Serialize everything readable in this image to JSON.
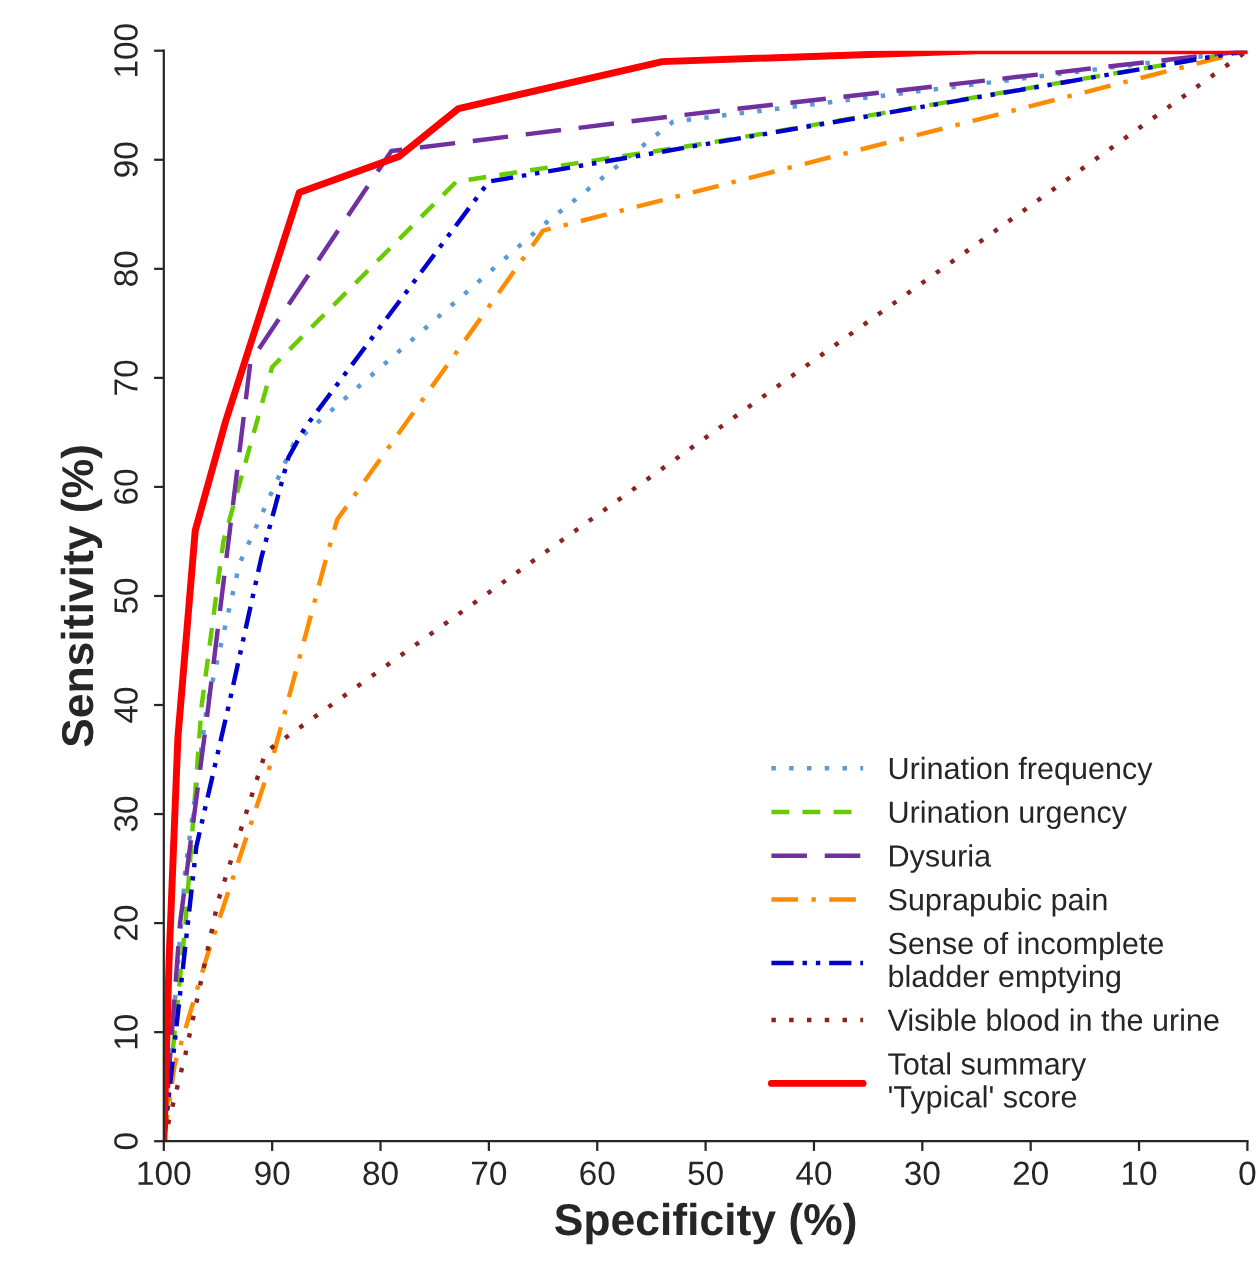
{
  "chart_data": {
    "type": "line",
    "xlabel": "Specificity (%)",
    "ylabel": "Sensitivity (%)",
    "xlim": [
      100,
      0
    ],
    "ylim": [
      0,
      100
    ],
    "xticks": [
      100,
      90,
      80,
      70,
      60,
      50,
      40,
      30,
      20,
      10,
      0
    ],
    "yticks": [
      0,
      10,
      20,
      30,
      40,
      50,
      60,
      70,
      80,
      90,
      100
    ],
    "grid": false,
    "legend": "bottom right",
    "marker": "none",
    "series": [
      {
        "name": "Urination frequency",
        "color": "#5b9bd5",
        "line_style": "dotted",
        "x": [
          100,
          98,
          96,
          93,
          88,
          65,
          53,
          0
        ],
        "values": [
          0,
          25,
          40,
          53,
          64,
          84,
          93.5,
          100
        ]
      },
      {
        "name": "Urination urgency",
        "color": "#66cc00",
        "line_style": "dashed",
        "x": [
          100,
          98,
          96.5,
          94.5,
          90,
          73,
          50,
          0
        ],
        "values": [
          0,
          20,
          40,
          55,
          71,
          88,
          91.5,
          100
        ]
      },
      {
        "name": "Dysuria",
        "color": "#7030a0",
        "line_style": "longdash",
        "x": [
          100,
          98.5,
          96,
          92,
          79,
          53,
          0
        ],
        "values": [
          0,
          20,
          39,
          71.5,
          90.8,
          94,
          100
        ]
      },
      {
        "name": "Suprapubic pain",
        "color": "#ff8c00",
        "line_style": "dashdot",
        "x": [
          100,
          99,
          96,
          90,
          85,
          84,
          65,
          0
        ],
        "values": [
          0,
          7,
          17,
          35,
          53.5,
          57,
          83.5,
          100
        ]
      },
      {
        "name": "Sense of incomplete\nbladder emptying",
        "color": "#0000cc",
        "line_style": "dashdotdot",
        "x": [
          100,
          97,
          94,
          91,
          88.5,
          87,
          70,
          0
        ],
        "values": [
          0,
          27,
          40,
          53.5,
          62.7,
          65.4,
          88,
          100
        ]
      },
      {
        "name": "Visible blood in the urine",
        "color": "#8b2323",
        "line_style": "dotted",
        "x": [
          100,
          98,
          95,
          90.6,
          0
        ],
        "values": [
          0,
          8,
          22,
          35.7,
          100
        ]
      },
      {
        "name": "Total summary\n'Typical' score",
        "color": "#ff0000",
        "line_style": "solid",
        "x": [
          100,
          99.5,
          98.7,
          97.1,
          94.3,
          87.5,
          78.3,
          72.8,
          54,
          25,
          0
        ],
        "values": [
          0,
          17,
          37,
          56,
          66,
          87,
          90.3,
          94.7,
          99,
          100,
          100
        ]
      }
    ]
  }
}
